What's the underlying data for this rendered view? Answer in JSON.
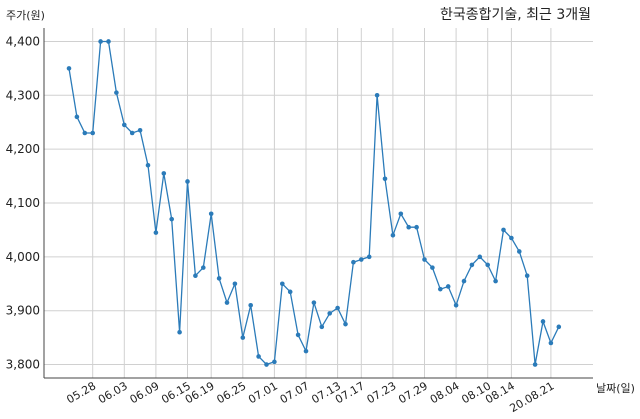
{
  "chart_data": {
    "type": "line",
    "title": "한국종합기술, 최근 3개월",
    "ylabel": "주가(원)",
    "xlabel": "날짜(일)",
    "ylim": [
      3775,
      4425
    ],
    "yticks": [
      3800,
      3900,
      4000,
      4100,
      4200,
      4300,
      4400
    ],
    "ytick_labels": [
      "3,800",
      "3,900",
      "4,000",
      "4,100",
      "4,200",
      "4,300",
      "4,400"
    ],
    "xtick_labels": [
      "05.28",
      "06.03",
      "06.09",
      "06.15",
      "06.19",
      "06.25",
      "07.01",
      "07.07",
      "07.13",
      "07.17",
      "07.23",
      "07.29",
      "08.04",
      "08.10",
      "08.14",
      "20.08.21"
    ],
    "xtick_index": [
      3,
      7,
      11,
      15,
      18,
      22,
      26,
      30,
      34,
      37,
      41,
      45,
      49,
      53,
      56,
      61
    ],
    "grid": true,
    "line_color": "#2b7bb9",
    "series": [
      {
        "values": [
          4350,
          4260,
          4230,
          4230,
          4400,
          4400,
          4305,
          4245,
          4230,
          4235,
          4170,
          4045,
          4155,
          4070,
          3860,
          4140,
          3965,
          3980,
          4080,
          3960,
          3915,
          3950,
          3850,
          3910,
          3815,
          3800,
          3805,
          3950,
          3935,
          3855,
          3825,
          3915,
          3870,
          3895,
          3905,
          3875,
          3990,
          3995,
          4000,
          4300,
          4145,
          4040,
          4080,
          4055,
          4055,
          3995,
          3980,
          3940,
          3945,
          3910,
          3955,
          3985,
          4000,
          3985,
          3955,
          4050,
          4035,
          4010,
          3965,
          3800,
          3880,
          3840,
          3870
        ]
      }
    ]
  }
}
